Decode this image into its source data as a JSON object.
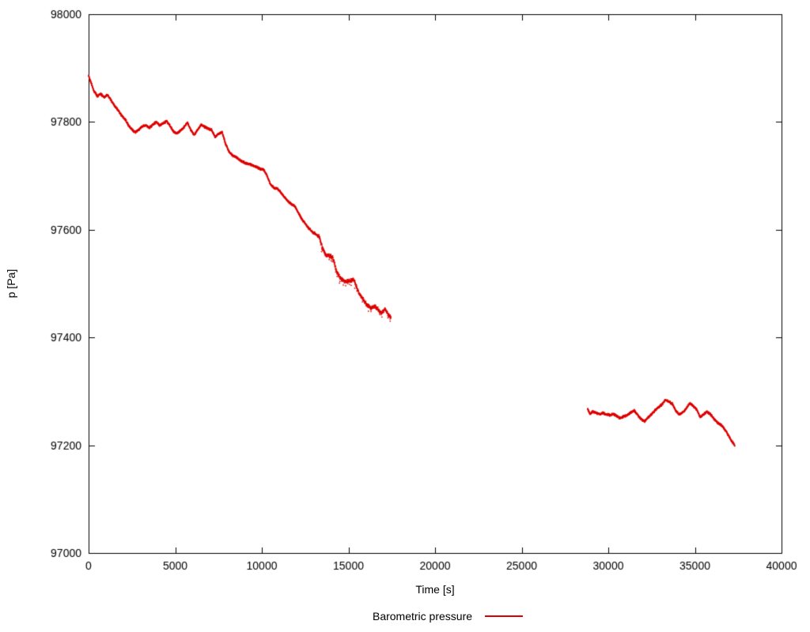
{
  "chart": {
    "background": "#ffffff",
    "axis_color": "#000000"
  },
  "chart_data": {
    "type": "scatter",
    "title": "",
    "xlabel": "Time [s]",
    "ylabel": "p [Pa]",
    "xlim": [
      0,
      40000
    ],
    "ylim": [
      97000,
      98000
    ],
    "xticks": [
      0,
      5000,
      10000,
      15000,
      20000,
      25000,
      30000,
      35000,
      40000
    ],
    "yticks": [
      97000,
      97200,
      97400,
      97600,
      97800,
      98000
    ],
    "grid": false,
    "legend_position": "bottom-center",
    "legend": [
      {
        "label": "Barometric pressure",
        "color": "#dd0000"
      }
    ],
    "series": [
      {
        "name": "Barometric pressure",
        "style": "dots",
        "color": "#dd0000",
        "segments": [
          [
            [
              0,
              97886
            ],
            [
              150,
              97872
            ],
            [
              300,
              97858
            ],
            [
              500,
              97848
            ],
            [
              700,
              97852
            ],
            [
              900,
              97846
            ],
            [
              1100,
              97850
            ],
            [
              1300,
              97840
            ],
            [
              1500,
              97830
            ],
            [
              1700,
              97822
            ],
            [
              1900,
              97812
            ],
            [
              2100,
              97805
            ],
            [
              2300,
              97794
            ],
            [
              2500,
              97786
            ],
            [
              2700,
              97781
            ],
            [
              2900,
              97786
            ],
            [
              3100,
              97792
            ],
            [
              3300,
              97794
            ],
            [
              3500,
              97789
            ],
            [
              3700,
              97795
            ],
            [
              3900,
              97800
            ],
            [
              4100,
              97794
            ],
            [
              4300,
              97797
            ],
            [
              4500,
              97802
            ],
            [
              4700,
              97793
            ],
            [
              4900,
              97782
            ],
            [
              5100,
              97779
            ],
            [
              5300,
              97784
            ],
            [
              5500,
              97790
            ],
            [
              5700,
              97799
            ],
            [
              5900,
              97785
            ],
            [
              6100,
              97776
            ],
            [
              6300,
              97786
            ],
            [
              6500,
              97795
            ],
            [
              6700,
              97791
            ],
            [
              6900,
              97788
            ],
            [
              7100,
              97785
            ],
            [
              7300,
              97772
            ],
            [
              7500,
              97778
            ],
            [
              7700,
              97782
            ],
            [
              7900,
              97760
            ],
            [
              8100,
              97745
            ],
            [
              8300,
              97738
            ],
            [
              8500,
              97735
            ],
            [
              8700,
              97730
            ],
            [
              8900,
              97726
            ],
            [
              9100,
              97723
            ],
            [
              9300,
              97722
            ],
            [
              9500,
              97719
            ],
            [
              9700,
              97716
            ],
            [
              9900,
              97713
            ],
            [
              10100,
              97712
            ],
            [
              10300,
              97700
            ],
            [
              10500,
              97684
            ],
            [
              10700,
              97678
            ],
            [
              10900,
              97676
            ],
            [
              11100,
              97669
            ],
            [
              11300,
              97661
            ],
            [
              11500,
              97653
            ],
            [
              11700,
              97648
            ],
            [
              11900,
              97644
            ],
            [
              12100,
              97632
            ],
            [
              12300,
              97620
            ],
            [
              12500,
              97612
            ],
            [
              12700,
              97603
            ],
            [
              12900,
              97596
            ],
            [
              13100,
              97592
            ],
            [
              13300,
              97588
            ],
            [
              13500,
              97566
            ],
            [
              13700,
              97553
            ],
            [
              13900,
              97552
            ],
            [
              14100,
              97548
            ],
            [
              14300,
              97524
            ],
            [
              14500,
              97512
            ],
            [
              14700,
              97506
            ],
            [
              14900,
              97504
            ],
            [
              15100,
              97505
            ],
            [
              15300,
              97508
            ],
            [
              15500,
              97490
            ],
            [
              15700,
              97478
            ],
            [
              15900,
              97468
            ],
            [
              16100,
              97460
            ],
            [
              16300,
              97455
            ],
            [
              16500,
              97458
            ],
            [
              16700,
              97452
            ],
            [
              16900,
              97444
            ],
            [
              17100,
              97453
            ],
            [
              17300,
              97442
            ],
            [
              17450,
              97436
            ]
          ],
          [
            [
              28800,
              97268
            ],
            [
              28950,
              97258
            ],
            [
              29100,
              97263
            ],
            [
              29300,
              97260
            ],
            [
              29500,
              97258
            ],
            [
              29700,
              97260
            ],
            [
              29900,
              97257
            ],
            [
              30100,
              97256
            ],
            [
              30300,
              97258
            ],
            [
              30500,
              97254
            ],
            [
              30700,
              97250
            ],
            [
              30900,
              97254
            ],
            [
              31100,
              97256
            ],
            [
              31300,
              97261
            ],
            [
              31500,
              97264
            ],
            [
              31700,
              97256
            ],
            [
              31900,
              97248
            ],
            [
              32100,
              97244
            ],
            [
              32300,
              97252
            ],
            [
              32500,
              97258
            ],
            [
              32700,
              97265
            ],
            [
              32900,
              97270
            ],
            [
              33100,
              97276
            ],
            [
              33300,
              97284
            ],
            [
              33500,
              97281
            ],
            [
              33700,
              97277
            ],
            [
              33900,
              97264
            ],
            [
              34100,
              97257
            ],
            [
              34300,
              97261
            ],
            [
              34500,
              97268
            ],
            [
              34700,
              97278
            ],
            [
              34900,
              97273
            ],
            [
              35100,
              97267
            ],
            [
              35300,
              97252
            ],
            [
              35500,
              97257
            ],
            [
              35700,
              97262
            ],
            [
              35900,
              97257
            ],
            [
              36100,
              97249
            ],
            [
              36300,
              97242
            ],
            [
              36500,
              97238
            ],
            [
              36700,
              97231
            ],
            [
              36900,
              97220
            ],
            [
              37100,
              97209
            ],
            [
              37300,
              97200
            ]
          ]
        ]
      }
    ]
  }
}
